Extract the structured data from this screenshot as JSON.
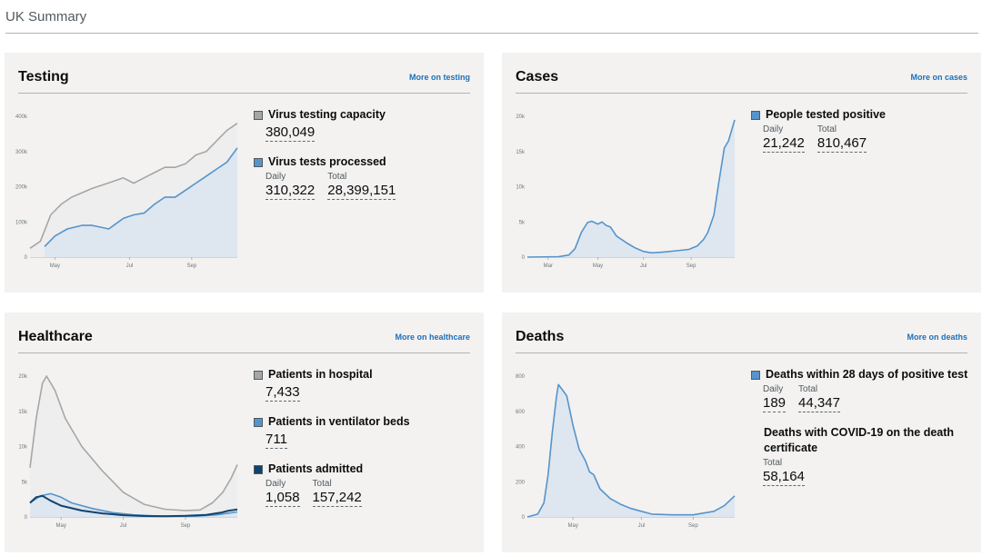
{
  "page": {
    "title": "UK Summary"
  },
  "colors": {
    "capacity": "#a6a6a6",
    "tests": "#5694ca",
    "hospital": "#a6a6a6",
    "ventilator": "#5694ca",
    "admitted": "#12436d",
    "fill_light": "#dee6f0",
    "fill_gray": "#eeeeee"
  },
  "testing": {
    "title": "Testing",
    "link": "More on testing",
    "capacity_label": "Virus testing capacity",
    "capacity_value": "380,049",
    "processed_label": "Virus tests processed",
    "daily_label": "Daily",
    "daily_value": "310,322",
    "total_label": "Total",
    "total_value": "28,399,151",
    "chart_data": {
      "type": "line",
      "ylabels": [
        "0",
        "100k",
        "200k",
        "300k",
        "400k"
      ],
      "xlabels": [
        "May",
        "Jul",
        "Sep"
      ],
      "series": [
        {
          "name": "Virus testing capacity",
          "points": [
            [
              0,
              25000
            ],
            [
              0.05,
              45000
            ],
            [
              0.1,
              120000
            ],
            [
              0.15,
              150000
            ],
            [
              0.2,
              170000
            ],
            [
              0.3,
              195000
            ],
            [
              0.4,
              215000
            ],
            [
              0.45,
              225000
            ],
            [
              0.5,
              210000
            ],
            [
              0.55,
              225000
            ],
            [
              0.6,
              240000
            ],
            [
              0.65,
              255000
            ],
            [
              0.7,
              255000
            ],
            [
              0.75,
              265000
            ],
            [
              0.8,
              290000
            ],
            [
              0.85,
              300000
            ],
            [
              0.9,
              330000
            ],
            [
              0.95,
              360000
            ],
            [
              1,
              380049
            ]
          ]
        },
        {
          "name": "Virus tests processed",
          "points": [
            [
              0.07,
              30000
            ],
            [
              0.12,
              60000
            ],
            [
              0.18,
              80000
            ],
            [
              0.25,
              90000
            ],
            [
              0.3,
              90000
            ],
            [
              0.38,
              80000
            ],
            [
              0.45,
              110000
            ],
            [
              0.5,
              120000
            ],
            [
              0.55,
              125000
            ],
            [
              0.6,
              150000
            ],
            [
              0.65,
              170000
            ],
            [
              0.7,
              170000
            ],
            [
              0.75,
              190000
            ],
            [
              0.8,
              210000
            ],
            [
              0.85,
              230000
            ],
            [
              0.9,
              250000
            ],
            [
              0.95,
              270000
            ],
            [
              1,
              310322
            ]
          ]
        }
      ]
    }
  },
  "cases": {
    "title": "Cases",
    "link": "More on cases",
    "positive_label": "People tested positive",
    "daily_label": "Daily",
    "daily_value": "21,242",
    "total_label": "Total",
    "total_value": "810,467",
    "chart_data": {
      "type": "area",
      "ylabels": [
        "0",
        "5k",
        "10k",
        "15k",
        "20k"
      ],
      "xlabels": [
        "Mar",
        "May",
        "Jul",
        "Sep"
      ],
      "series": [
        {
          "name": "People tested positive",
          "points": [
            [
              0,
              0
            ],
            [
              0.15,
              50
            ],
            [
              0.2,
              300
            ],
            [
              0.23,
              1200
            ],
            [
              0.26,
              3500
            ],
            [
              0.29,
              4900
            ],
            [
              0.31,
              5100
            ],
            [
              0.34,
              4700
            ],
            [
              0.36,
              5000
            ],
            [
              0.38,
              4500
            ],
            [
              0.4,
              4300
            ],
            [
              0.43,
              3000
            ],
            [
              0.48,
              2000
            ],
            [
              0.52,
              1300
            ],
            [
              0.56,
              800
            ],
            [
              0.6,
              600
            ],
            [
              0.65,
              700
            ],
            [
              0.72,
              900
            ],
            [
              0.78,
              1100
            ],
            [
              0.82,
              1600
            ],
            [
              0.85,
              2500
            ],
            [
              0.87,
              3500
            ],
            [
              0.9,
              6000
            ],
            [
              0.92,
              10000
            ],
            [
              0.95,
              15500
            ],
            [
              0.97,
              16500
            ],
            [
              1,
              19500
            ]
          ]
        }
      ]
    }
  },
  "healthcare": {
    "title": "Healthcare",
    "link": "More on healthcare",
    "hospital_label": "Patients in hospital",
    "hospital_value": "7,433",
    "ventilator_label": "Patients in ventilator beds",
    "ventilator_value": "711",
    "admitted_label": "Patients admitted",
    "daily_label": "Daily",
    "daily_value": "1,058",
    "total_label": "Total",
    "total_value": "157,242",
    "chart_data": {
      "type": "line",
      "ylabels": [
        "0",
        "5k",
        "10k",
        "15k",
        "20k"
      ],
      "xlabels": [
        "May",
        "Jul",
        "Sep"
      ],
      "series": [
        {
          "name": "Patients in hospital",
          "points": [
            [
              0,
              7000
            ],
            [
              0.03,
              14000
            ],
            [
              0.06,
              19000
            ],
            [
              0.08,
              20000
            ],
            [
              0.12,
              18000
            ],
            [
              0.17,
              14000
            ],
            [
              0.25,
              10000
            ],
            [
              0.35,
              6500
            ],
            [
              0.45,
              3500
            ],
            [
              0.55,
              1800
            ],
            [
              0.65,
              1100
            ],
            [
              0.75,
              900
            ],
            [
              0.82,
              1000
            ],
            [
              0.88,
              2000
            ],
            [
              0.93,
              3500
            ],
            [
              0.97,
              5500
            ],
            [
              1,
              7433
            ]
          ]
        },
        {
          "name": "Patients in ventilator beds",
          "points": [
            [
              0,
              2000
            ],
            [
              0.05,
              3000
            ],
            [
              0.1,
              3300
            ],
            [
              0.15,
              2800
            ],
            [
              0.2,
              2000
            ],
            [
              0.3,
              1200
            ],
            [
              0.4,
              600
            ],
            [
              0.5,
              300
            ],
            [
              0.6,
              150
            ],
            [
              0.7,
              100
            ],
            [
              0.8,
              100
            ],
            [
              0.9,
              300
            ],
            [
              1,
              711
            ]
          ]
        },
        {
          "name": "Patients admitted",
          "points": [
            [
              0,
              2000
            ],
            [
              0.03,
              2800
            ],
            [
              0.06,
              3000
            ],
            [
              0.1,
              2300
            ],
            [
              0.15,
              1600
            ],
            [
              0.25,
              900
            ],
            [
              0.35,
              500
            ],
            [
              0.45,
              250
            ],
            [
              0.55,
              130
            ],
            [
              0.65,
              100
            ],
            [
              0.75,
              150
            ],
            [
              0.85,
              300
            ],
            [
              0.92,
              600
            ],
            [
              0.96,
              900
            ],
            [
              1,
              1058
            ]
          ]
        }
      ]
    }
  },
  "deaths": {
    "title": "Deaths",
    "link": "More on deaths",
    "within28_label": "Deaths within 28 days of positive test",
    "daily_label": "Daily",
    "daily_value": "189",
    "total_label": "Total",
    "total_value": "44,347",
    "certificate_label": "Deaths with COVID-19 on the death certificate",
    "certificate_total_label": "Total",
    "certificate_total_value": "58,164",
    "chart_data": {
      "type": "area",
      "ylabels": [
        "0",
        "200",
        "400",
        "600",
        "800"
      ],
      "xlabels": [
        "May",
        "Jul",
        "Sep"
      ],
      "series": [
        {
          "name": "Deaths within 28 days of positive test",
          "points": [
            [
              0,
              0
            ],
            [
              0.05,
              20
            ],
            [
              0.08,
              100
            ],
            [
              0.1,
              300
            ],
            [
              0.12,
              600
            ],
            [
              0.14,
              850
            ],
            [
              0.15,
              940
            ],
            [
              0.17,
              900
            ],
            [
              0.19,
              860
            ],
            [
              0.22,
              650
            ],
            [
              0.25,
              480
            ],
            [
              0.28,
              400
            ],
            [
              0.3,
              320
            ],
            [
              0.32,
              300
            ],
            [
              0.35,
              200
            ],
            [
              0.4,
              130
            ],
            [
              0.45,
              90
            ],
            [
              0.5,
              60
            ],
            [
              0.55,
              40
            ],
            [
              0.6,
              20
            ],
            [
              0.7,
              15
            ],
            [
              0.8,
              15
            ],
            [
              0.9,
              40
            ],
            [
              0.95,
              80
            ],
            [
              1,
              150
            ]
          ]
        }
      ]
    }
  }
}
